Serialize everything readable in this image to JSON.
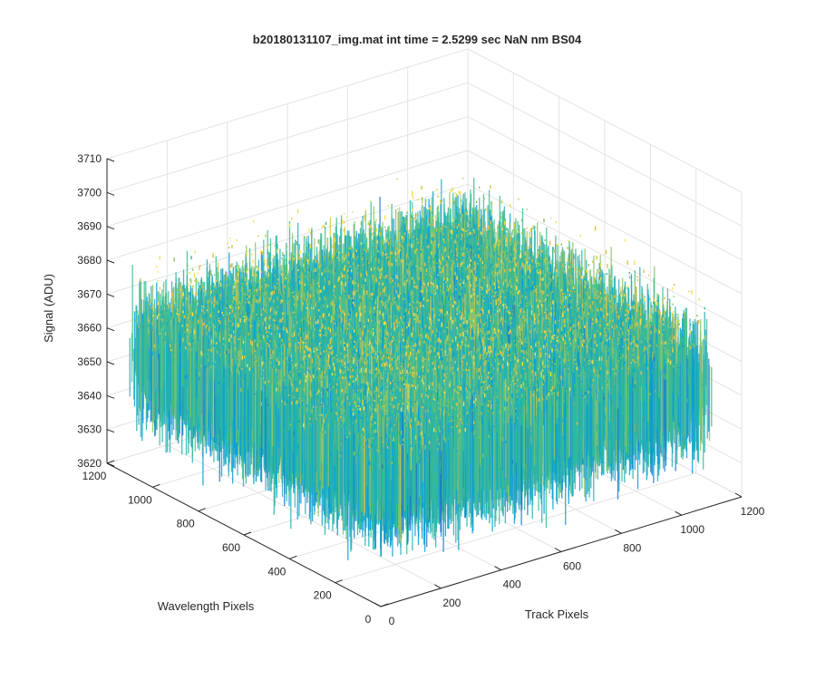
{
  "chart_data": {
    "type": "surface",
    "title": "b20180131107_img.mat int time = 2.5299 sec  NaN nm BS04",
    "xlabel": "Track Pixels",
    "ylabel": "Wavelength Pixels",
    "zlabel": "Signal (ADU)",
    "x_ticks": [
      "0",
      "200",
      "400",
      "600",
      "800",
      "1000",
      "1200"
    ],
    "y_ticks": [
      "0",
      "200",
      "400",
      "600",
      "800",
      "1000",
      "1200"
    ],
    "z_ticks": [
      "3620",
      "3630",
      "3640",
      "3650",
      "3660",
      "3670",
      "3680",
      "3690",
      "3700",
      "3710"
    ],
    "xlim": [
      0,
      1200
    ],
    "ylim": [
      0,
      1200
    ],
    "zlim": [
      3620,
      3710
    ],
    "data_extent": {
      "x": [
        0,
        1100
      ],
      "y": [
        0,
        1100
      ]
    },
    "signal_mean": 3655,
    "signal_spread_approx": [
      3625,
      3700
    ],
    "grid": true,
    "colormap": [
      "#1f78c8",
      "#0b9bd6",
      "#22b0b4",
      "#3dbb93",
      "#8cc36a",
      "#d9c44a",
      "#f5e04a"
    ]
  }
}
